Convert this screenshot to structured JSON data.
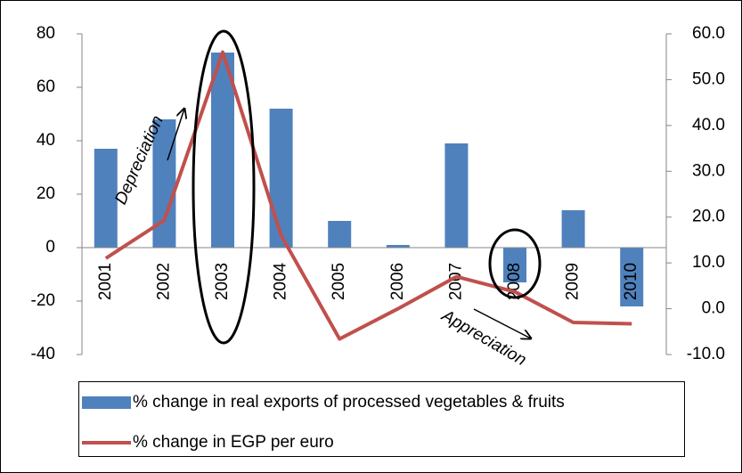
{
  "chart_data": {
    "type": "bar_line",
    "categories": [
      "2001",
      "2002",
      "2003",
      "2004",
      "2005",
      "2006",
      "2007",
      "2008",
      "2009",
      "2010"
    ],
    "series": [
      {
        "name": "% change in real exports of processed vegetables & fruits",
        "color": "#4f81bd",
        "type": "bar",
        "values": [
          37,
          48,
          73,
          52,
          10,
          1,
          39,
          -13,
          14,
          -22
        ]
      },
      {
        "name": "% change in EGP per euro",
        "color": "#c0504d",
        "type": "line",
        "axis": "y2",
        "values": [
          11,
          19.3,
          56,
          16,
          -6.6,
          0,
          7,
          3.7,
          -3,
          -3.3
        ]
      }
    ],
    "ylim": [
      -40,
      80
    ],
    "yticks": [
      -40,
      -20,
      0,
      20,
      40,
      60,
      80
    ],
    "y2lim": [
      -10,
      60
    ],
    "y2ticks": [
      {
        "value": -10,
        "label": "-10.0"
      },
      {
        "value": 0,
        "label": "0.0"
      },
      {
        "value": 10,
        "label": "10.0"
      },
      {
        "value": 20,
        "label": "20.0"
      },
      {
        "value": 30,
        "label": "30.0"
      },
      {
        "value": 40,
        "label": "40.0"
      },
      {
        "value": 50,
        "label": "50.0"
      },
      {
        "value": 60,
        "label": "60.0"
      }
    ],
    "annotations": [
      "Depreciation",
      "Appreciation"
    ],
    "legend": "bottom"
  }
}
